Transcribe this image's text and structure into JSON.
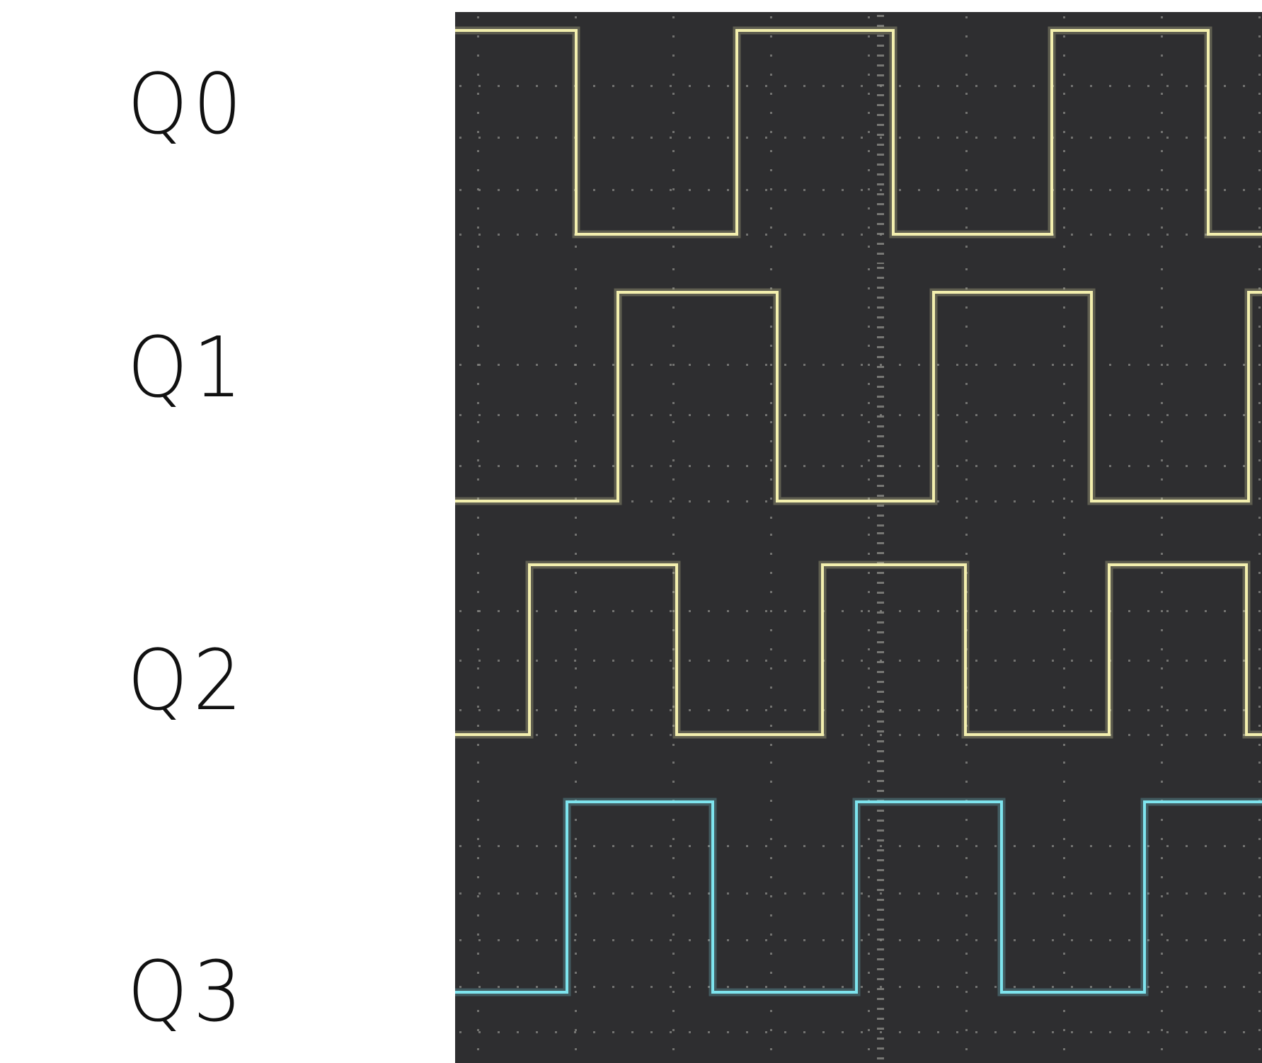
{
  "labels": [
    "Q0",
    "Q1",
    "Q2",
    "Q3"
  ],
  "colors": {
    "background": "#ffffff",
    "scope_background": "#2e2e30",
    "grid_dots": "#8a8a86",
    "trace_yellow": "#f3efae",
    "trace_cyan": "#7ee4ee"
  },
  "waveforms": [
    {
      "name": "Q0",
      "color": "trace_yellow",
      "initial_level": "high"
    },
    {
      "name": "Q1",
      "color": "trace_yellow",
      "initial_level": "low"
    },
    {
      "name": "Q2",
      "color": "trace_yellow",
      "initial_level": "low"
    },
    {
      "name": "Q3",
      "color": "trace_cyan",
      "initial_level": "low"
    }
  ]
}
